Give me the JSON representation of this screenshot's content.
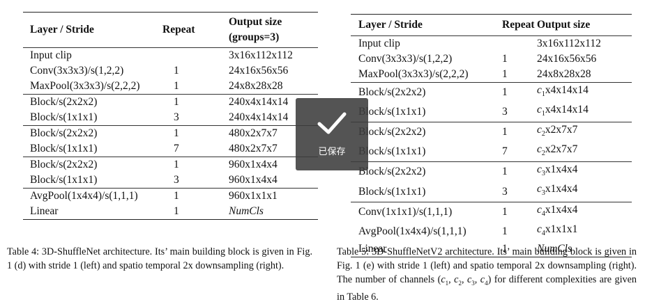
{
  "table4": {
    "headers": {
      "layer": "Layer / Stride",
      "repeat": "Repeat",
      "output_line1": "Output size",
      "output_line2": "(groups=3)"
    },
    "groups": [
      [
        [
          "Input clip",
          "",
          "3x16x112x112"
        ],
        [
          "Conv(3x3x3)/s(1,2,2)",
          "1",
          "24x16x56x56"
        ],
        [
          "MaxPool(3x3x3)/s(2,2,2)",
          "1",
          "24x8x28x28"
        ]
      ],
      [
        [
          "Block/s(2x2x2)",
          "1",
          "240x4x14x14"
        ],
        [
          "Block/s(1x1x1)",
          "3",
          "240x4x14x14"
        ]
      ],
      [
        [
          "Block/s(2x2x2)",
          "1",
          "480x2x7x7"
        ],
        [
          "Block/s(1x1x1)",
          "7",
          "480x2x7x7"
        ]
      ],
      [
        [
          "Block/s(2x2x2)",
          "1",
          "960x1x4x4"
        ],
        [
          "Block/s(1x1x1)",
          "3",
          "960x1x4x4"
        ]
      ],
      [
        [
          "AvgPool(1x4x4)/s(1,1,1)",
          "1",
          "960x1x1x1"
        ],
        [
          "Linear",
          "1",
          "NumCls"
        ]
      ]
    ],
    "caption": "Table 4: 3D-ShuffleNet architecture. Its’ main building block is given in Fig. 1 (d) with stride 1 (left) and spatio temporal 2x downsampling (right)."
  },
  "table5": {
    "headers": {
      "layer": "Layer / Stride",
      "repeat": "Repeat",
      "output": "Output size"
    },
    "groups": [
      [
        [
          "Input clip",
          "",
          "3x16x112x112"
        ],
        [
          "Conv(3x3x3)/s(1,2,2)",
          "1",
          "24x16x56x56"
        ],
        [
          "MaxPool(3x3x3)/s(2,2,2)",
          "1",
          "24x8x28x28"
        ]
      ],
      [
        [
          "Block/s(2x2x2)",
          "1",
          "c1x4x14x14"
        ],
        [
          "Block/s(1x1x1)",
          "3",
          "c1x4x14x14"
        ]
      ],
      [
        [
          "Block/s(2x2x2)",
          "1",
          "c2x2x7x7"
        ],
        [
          "Block/s(1x1x1)",
          "7",
          "c2x2x7x7"
        ]
      ],
      [
        [
          "Block/s(2x2x2)",
          "1",
          "c3x1x4x4"
        ],
        [
          "Block/s(1x1x1)",
          "3",
          "c3x1x4x4"
        ]
      ],
      [
        [
          "Conv(1x1x1)/s(1,1,1)",
          "1",
          "c4x1x4x4"
        ],
        [
          "AvgPool(1x4x4)/s(1,1,1)",
          "1",
          "c4x1x1x1"
        ],
        [
          "Linear",
          "1",
          "NumCls"
        ]
      ]
    ],
    "caption": "Table 5: 3D-ShuffleNetV2 architecture. Its’ main building block is given in Fig. 1 (e) with stride 1 (left) and spatio temporal 2x downsampling (right). The number of channels (c1, c2, c3, c4) for different complexities are given in Table 6."
  },
  "toast": {
    "label": "已保存",
    "icon": "checkmark-icon"
  }
}
